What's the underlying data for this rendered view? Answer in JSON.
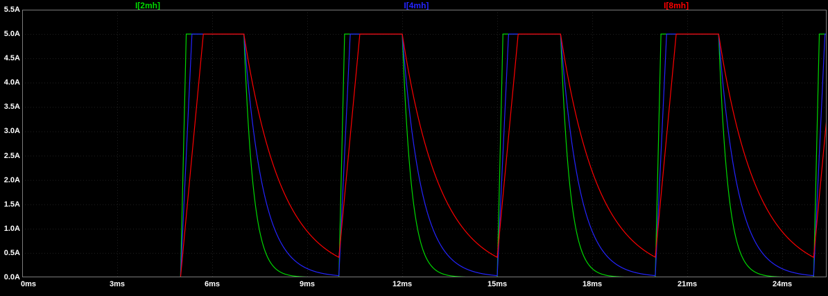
{
  "window": {
    "background": "#000000",
    "border_color": "#7d7d7d",
    "grid_color": "#222222",
    "text_color": "#ffffff"
  },
  "traces_legend": [
    {
      "label": "I[2mh]",
      "color": "#00d800"
    },
    {
      "label": "I[4mh]",
      "color": "#2424ff"
    },
    {
      "label": "I[8mh]",
      "color": "#ff0000"
    }
  ],
  "chart_data": {
    "type": "line",
    "title": "",
    "xlabel": "",
    "ylabel": "",
    "x_unit": "ms",
    "y_unit": "A",
    "x_range_ms": [
      0,
      25.4
    ],
    "y_range_A": [
      0,
      5.5
    ],
    "x_ticks": [
      "0ms",
      "3ms",
      "6ms",
      "9ms",
      "12ms",
      "15ms",
      "18ms",
      "21ms",
      "24ms"
    ],
    "y_ticks": [
      "5.5A",
      "5.0A",
      "4.5A",
      "4.0A",
      "3.5A",
      "3.0A",
      "2.5A",
      "2.0A",
      "1.5A",
      "1.0A",
      "0.5A",
      "0.0A"
    ],
    "grid": true,
    "legend_position": "top",
    "drive_pulse": {
      "start_ms": 5,
      "period_ms": 5,
      "on_ms": 2,
      "amplitude_A": 5.0,
      "pulse_windows_ms": [
        [
          5,
          7
        ],
        [
          10,
          12
        ],
        [
          15,
          17
        ],
        [
          20,
          22
        ]
      ]
    },
    "series": [
      {
        "name": "I[2mh]",
        "color": "#00d800",
        "peak_A": 5.0,
        "baseline_A": 0.0,
        "rise_ms": 0.18,
        "decay_tau_ms": 0.3,
        "description": "ramps 0 to 5A at each pulse start, flat top at 5A, exponential decay after pulse end"
      },
      {
        "name": "I[4mh]",
        "color": "#2424ff",
        "peak_A": 5.0,
        "baseline_A": 0.0,
        "rise_ms": 0.36,
        "decay_tau_ms": 0.6,
        "description": "ramps 0 to 5A at each pulse start, flat top at 5A, exponential decay after pulse end"
      },
      {
        "name": "I[8mh]",
        "color": "#ff0000",
        "peak_A": 5.0,
        "baseline_A": 0.0,
        "rise_ms": 0.72,
        "decay_tau_ms": 1.2,
        "description": "slowest ramp to 5A, flat top at 5A, slowest exponential decay, ~0.4A remaining at next pulse start"
      }
    ]
  }
}
